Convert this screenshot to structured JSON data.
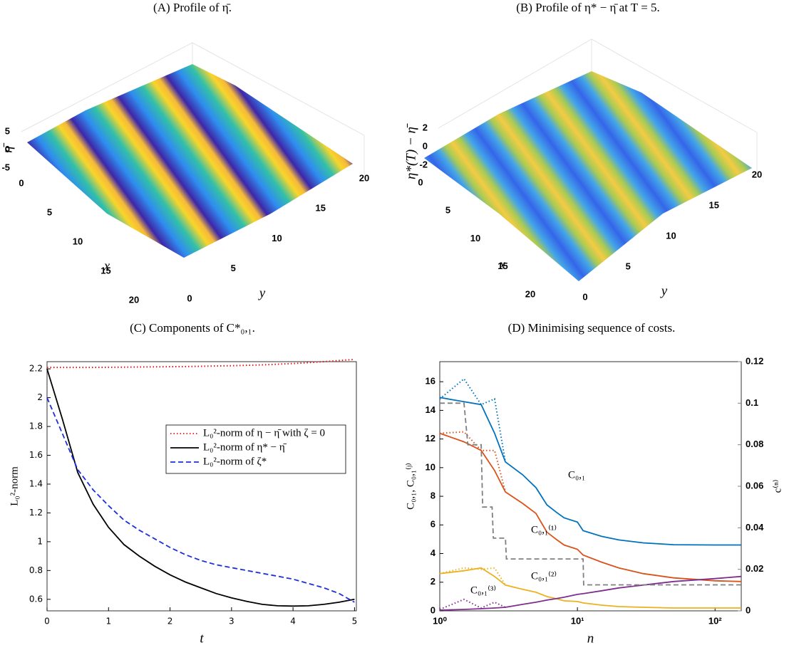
{
  "chart_data": [
    {
      "type": "surface",
      "title": "(A) Profile of η̄.",
      "xlabel": "x",
      "ylabel": "y",
      "zlabel": "η̄",
      "xlim": [
        0,
        20
      ],
      "ylim": [
        0,
        20
      ],
      "zlim": [
        -5,
        5
      ],
      "xticks": [
        0,
        5,
        10,
        15,
        20
      ],
      "yticks": [
        0,
        5,
        10,
        15,
        20
      ],
      "zticks": [
        -5,
        0,
        5
      ]
    },
    {
      "type": "surface",
      "title": "(B) Profile of η* − η̄ at T = 5.",
      "xlabel": "x",
      "ylabel": "y",
      "zlabel": "η*(T) − η̄",
      "xlim": [
        0,
        20
      ],
      "ylim": [
        0,
        20
      ],
      "zlim": [
        -2,
        2
      ],
      "xticks": [
        0,
        5,
        10,
        15,
        20
      ],
      "yticks": [
        0,
        5,
        10,
        15,
        20
      ],
      "zticks": [
        -2,
        0,
        2
      ]
    },
    {
      "type": "line",
      "title": "(C) Components of C*₀,₁.",
      "xlabel": "t",
      "ylabel": "L₀²-norm",
      "xlim": [
        0,
        5.03
      ],
      "ylim": [
        0.52,
        2.25
      ],
      "xticks": [
        0,
        1,
        2,
        3,
        4,
        5
      ],
      "yticks": [
        0.6,
        0.8,
        1,
        1.2,
        1.4,
        1.6,
        1.8,
        2,
        2.2
      ],
      "legend": "upper right",
      "x": [
        0,
        0.25,
        0.5,
        0.75,
        1,
        1.25,
        1.5,
        1.75,
        2,
        2.25,
        2.5,
        2.75,
        3,
        3.25,
        3.5,
        3.75,
        4,
        4.25,
        4.5,
        4.75,
        5
      ],
      "series": [
        {
          "name": "L₀²-norm of η − η̄ with ζ = 0",
          "color": "#e8141c",
          "style": "dotted",
          "values": [
            2.21,
            2.21,
            2.21,
            2.21,
            2.211,
            2.212,
            2.213,
            2.214,
            2.215,
            2.216,
            2.218,
            2.22,
            2.222,
            2.225,
            2.228,
            2.232,
            2.237,
            2.243,
            2.25,
            2.258,
            2.266
          ]
        },
        {
          "name": "L₀²-norm of η* − η̄",
          "color": "#000000",
          "style": "solid",
          "values": [
            2.2,
            1.85,
            1.48,
            1.26,
            1.1,
            0.98,
            0.9,
            0.83,
            0.77,
            0.72,
            0.68,
            0.64,
            0.61,
            0.585,
            0.565,
            0.555,
            0.553,
            0.555,
            0.565,
            0.58,
            0.6
          ]
        },
        {
          "name": "L₀²-norm of ζ*",
          "color": "#1c2fe0",
          "style": "dashed",
          "values": [
            2.0,
            1.75,
            1.5,
            1.36,
            1.25,
            1.15,
            1.08,
            1.02,
            0.96,
            0.91,
            0.87,
            0.84,
            0.82,
            0.8,
            0.78,
            0.76,
            0.74,
            0.71,
            0.68,
            0.64,
            0.58
          ]
        }
      ]
    },
    {
      "type": "line",
      "title": "(D) Minimising sequence of costs.",
      "xlabel": "n",
      "ylabel": "C₀,₁, C₀,₁⁽ʲ⁾",
      "y2label": "c⁽ⁿ⁾",
      "xlog": true,
      "xlim": [
        1,
        155
      ],
      "ylim": [
        0,
        17.4
      ],
      "y2lim": [
        0,
        0.12
      ],
      "xticks": [
        {
          "value": 1,
          "label": "10⁰"
        },
        {
          "value": 10,
          "label": "10¹"
        },
        {
          "value": 100,
          "label": "10²"
        }
      ],
      "yticks": [
        0,
        2,
        4,
        6,
        8,
        10,
        12,
        14,
        16
      ],
      "y2ticks": [
        0,
        0.02,
        0.04,
        0.06,
        0.08,
        0.1,
        0.12
      ],
      "x": [
        1,
        1.5,
        2,
        2.5,
        3,
        4,
        5,
        6,
        7,
        8,
        10,
        11,
        15,
        20,
        30,
        50,
        100,
        155
      ],
      "series": [
        {
          "name": "C₀,₁",
          "color": "#0072bd",
          "style": "solid",
          "values": [
            14.9,
            14.6,
            14.4,
            12.4,
            10.4,
            9.5,
            8.6,
            7.4,
            6.9,
            6.5,
            6.2,
            5.6,
            5.2,
            4.95,
            4.75,
            4.62,
            4.6,
            4.6
          ]
        },
        {
          "name": "C₀,₁⁽¹⁾",
          "color": "#d95319",
          "style": "solid",
          "values": [
            12.4,
            11.8,
            11.2,
            9.8,
            8.3,
            7.5,
            6.8,
            5.5,
            5.0,
            4.6,
            4.3,
            3.9,
            3.4,
            3.0,
            2.6,
            2.3,
            2.1,
            2.05
          ]
        },
        {
          "name": "C₀,₁⁽²⁾",
          "color": "#edb120",
          "style": "solid",
          "values": [
            2.6,
            2.8,
            3.0,
            2.4,
            1.8,
            1.5,
            1.3,
            1.0,
            0.85,
            0.7,
            0.65,
            0.55,
            0.4,
            0.3,
            0.25,
            0.2,
            0.2,
            0.2
          ]
        },
        {
          "name": "C₀,₁⁽³⁾",
          "color": "#7e2f8e",
          "style": "solid",
          "values": [
            0.05,
            0.1,
            0.15,
            0.2,
            0.25,
            0.45,
            0.6,
            0.75,
            0.85,
            0.95,
            1.15,
            1.2,
            1.4,
            1.6,
            1.8,
            2.05,
            2.25,
            2.4
          ]
        },
        {
          "color": "#0072bd",
          "style": "dotted",
          "x": [
            1,
            1.5,
            2,
            2.5,
            3
          ],
          "values": [
            14.8,
            16.2,
            14.4,
            14.8,
            10.4
          ]
        },
        {
          "color": "#d95319",
          "style": "dotted",
          "x": [
            1,
            1.5,
            2,
            2.5,
            3
          ],
          "values": [
            12.4,
            12.5,
            11.2,
            11.2,
            8.3
          ]
        },
        {
          "color": "#edb120",
          "style": "dotted",
          "x": [
            1,
            1.5,
            2,
            2.5,
            3
          ],
          "values": [
            2.6,
            3.0,
            2.9,
            3.0,
            1.8
          ]
        },
        {
          "color": "#7e2f8e",
          "style": "dotted",
          "x": [
            1,
            1.5,
            2,
            2.5,
            3
          ],
          "values": [
            0.1,
            0.8,
            0.2,
            0.6,
            0.25
          ]
        },
        {
          "color": "#808080",
          "style": "dashed",
          "axis": "y2",
          "x": [
            1,
            1.5,
            1.6,
            2,
            2.05,
            2.4,
            2.45,
            3,
            3.05,
            11,
            11.1,
            155
          ],
          "values": [
            0.1,
            0.1,
            0.08,
            0.08,
            0.05,
            0.05,
            0.035,
            0.035,
            0.025,
            0.025,
            0.0125,
            0.0125
          ]
        }
      ]
    }
  ]
}
